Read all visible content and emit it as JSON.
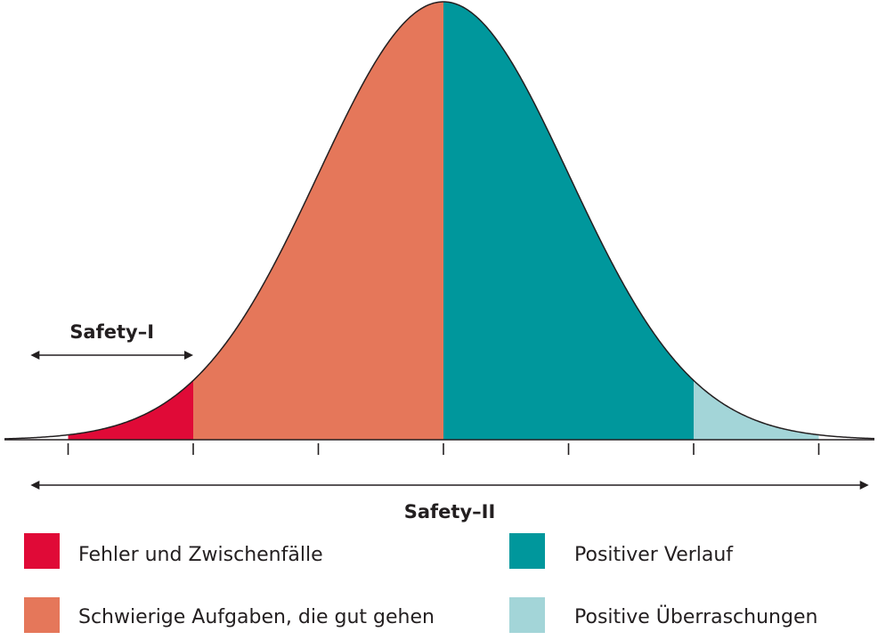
{
  "chart_data": {
    "type": "area",
    "title": "",
    "xlabel": "",
    "ylabel": "",
    "distribution": "normal",
    "xlim": [
      -3,
      3
    ],
    "ticks": [
      -3,
      -2,
      -1,
      0,
      1,
      2,
      3
    ],
    "regions": [
      {
        "key": "errors",
        "from": -3,
        "to": -2,
        "color": "#e00a37"
      },
      {
        "key": "hard",
        "from": -2,
        "to": 0,
        "color": "#e5775a"
      },
      {
        "key": "positive",
        "from": 0,
        "to": 2,
        "color": "#00979c"
      },
      {
        "key": "surprise",
        "from": 2,
        "to": 3,
        "color": "#a3d5d8"
      }
    ],
    "ranges": [
      {
        "key": "safety1",
        "label": "Safety–I",
        "from": -3.3,
        "to": -2
      },
      {
        "key": "safety2",
        "label": "Safety–II",
        "from": -3.3,
        "to": 3.4
      }
    ],
    "legend": [
      {
        "key": "errors",
        "label": "Fehler und Zwischenfälle",
        "color": "#e00a37"
      },
      {
        "key": "positive",
        "label": "Positiver Verlauf",
        "color": "#00979c"
      },
      {
        "key": "hard",
        "label": "Schwierige Aufgaben, die gut gehen",
        "color": "#e5775a"
      },
      {
        "key": "surprise",
        "label": "Positive Überraschungen",
        "color": "#a3d5d8"
      }
    ]
  }
}
